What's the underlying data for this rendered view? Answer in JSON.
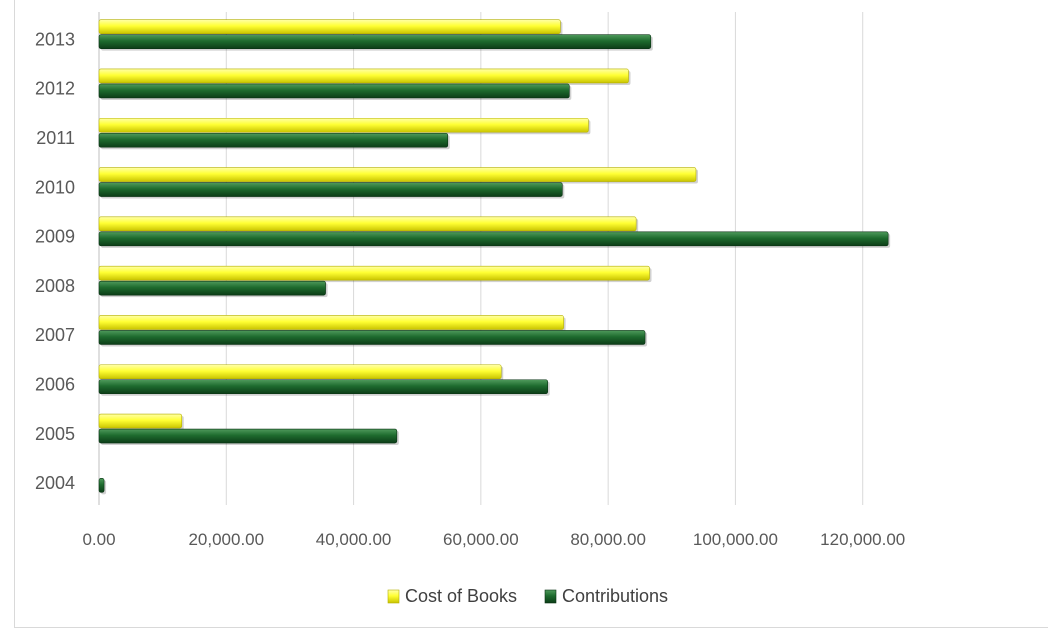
{
  "chart_data": {
    "type": "bar",
    "orientation": "horizontal",
    "categories": [
      "2013",
      "2012",
      "2011",
      "2010",
      "2009",
      "2008",
      "2007",
      "2006",
      "2005",
      "2004"
    ],
    "series": [
      {
        "name": "Cost of Books",
        "color": "#ffff33",
        "values": [
          72500,
          83200,
          76900,
          93800,
          84400,
          86500,
          73000,
          63200,
          13000,
          0
        ]
      },
      {
        "name": "Contributions",
        "color": "#1e6b2e",
        "values": [
          86700,
          73900,
          54800,
          72800,
          124000,
          35600,
          85800,
          70500,
          46800,
          800
        ]
      }
    ],
    "xlim": [
      0,
      140000
    ],
    "xticks": [
      "0.00",
      "20,000.00",
      "40,000.00",
      "60,000.00",
      "80,000.00",
      "100,000.00",
      "120,000.00"
    ],
    "xtick_values": [
      0,
      20000,
      40000,
      60000,
      80000,
      100000,
      120000
    ],
    "grid": true,
    "legend_position": "bottom",
    "title": "",
    "xlabel": "",
    "ylabel": ""
  }
}
